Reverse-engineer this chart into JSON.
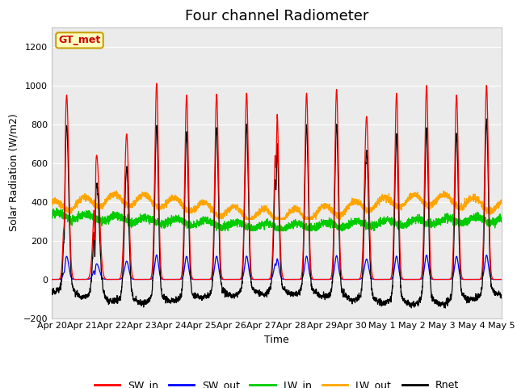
{
  "title": "Four channel Radiometer",
  "xlabel": "Time",
  "ylabel": "Solar Radiation (W/m2)",
  "ylim": [
    -200,
    1300
  ],
  "yticks": [
    -200,
    0,
    200,
    400,
    600,
    800,
    1000,
    1200
  ],
  "x_tick_labels": [
    "Apr 20",
    "Apr 21",
    "Apr 22",
    "Apr 23",
    "Apr 24",
    "Apr 25",
    "Apr 26",
    "Apr 27",
    "Apr 28",
    "Apr 29",
    "Apr 30",
    "May 1",
    "May 2",
    "May 3",
    "May 4",
    "May 5"
  ],
  "n_days": 15,
  "pts_per_day": 288,
  "annotation_text": "GT_met",
  "annotation_color": "#CC0000",
  "annotation_bg": "#FFFFC0",
  "annotation_edge": "#C8A000",
  "colors": {
    "SW_in": "#FF0000",
    "SW_out": "#0000FF",
    "LW_in": "#00CC00",
    "LW_out": "#FFA500",
    "Rnet": "#000000"
  },
  "background_color": "#EBEBEB",
  "SW_in_peaks": [
    950,
    640,
    750,
    1010,
    950,
    955,
    960,
    930,
    960,
    980,
    840,
    960,
    1000,
    950,
    1000
  ],
  "SW_in_widths": [
    0.07,
    0.09,
    0.07,
    0.06,
    0.06,
    0.06,
    0.06,
    0.07,
    0.06,
    0.06,
    0.07,
    0.06,
    0.06,
    0.06,
    0.06
  ],
  "LW_in_base": 290,
  "LW_out_base": 370,
  "SW_out_scale": 0.125,
  "title_fontsize": 13,
  "label_fontsize": 9,
  "tick_fontsize": 8
}
